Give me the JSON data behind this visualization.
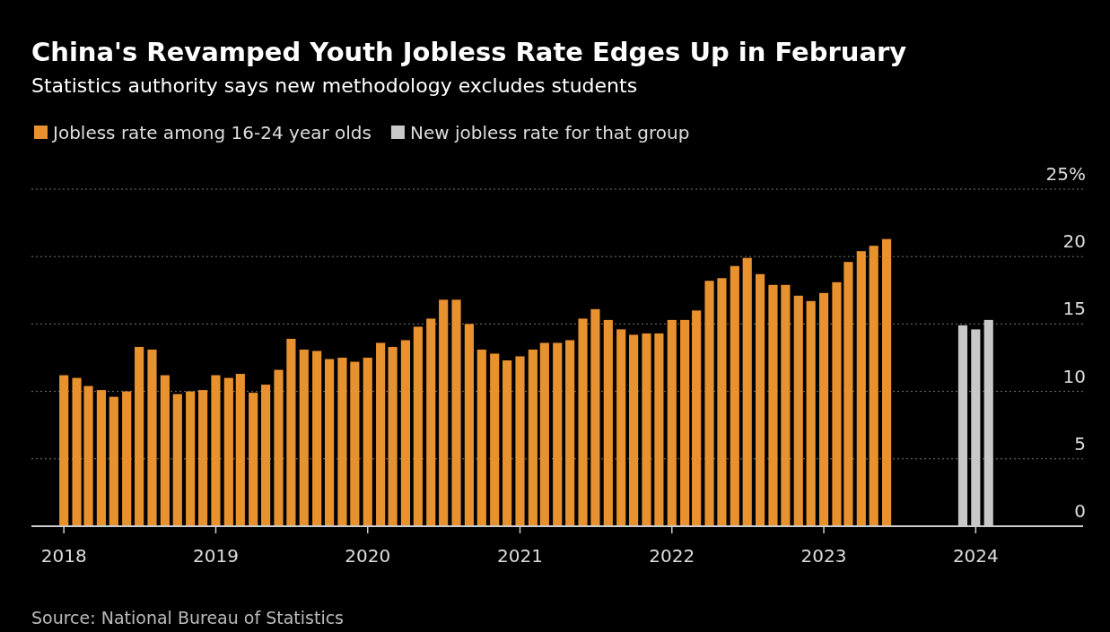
{
  "chart_data": {
    "type": "bar",
    "title": "China's Revamped Youth Jobless Rate Edges Up in February",
    "subtitle": "Statistics authority says new methodology excludes students",
    "series": [
      {
        "name": "Jobless rate among 16-24 year olds",
        "color": "#e8912f",
        "x": [
          "2018-01",
          "2018-02",
          "2018-03",
          "2018-04",
          "2018-05",
          "2018-06",
          "2018-07",
          "2018-08",
          "2018-09",
          "2018-10",
          "2018-11",
          "2018-12",
          "2019-01",
          "2019-02",
          "2019-03",
          "2019-04",
          "2019-05",
          "2019-06",
          "2019-07",
          "2019-08",
          "2019-09",
          "2019-10",
          "2019-11",
          "2019-12",
          "2020-01",
          "2020-02",
          "2020-03",
          "2020-04",
          "2020-05",
          "2020-06",
          "2020-07",
          "2020-08",
          "2020-09",
          "2020-10",
          "2020-11",
          "2020-12",
          "2021-01",
          "2021-02",
          "2021-03",
          "2021-04",
          "2021-05",
          "2021-06",
          "2021-07",
          "2021-08",
          "2021-09",
          "2021-10",
          "2021-11",
          "2021-12",
          "2022-01",
          "2022-02",
          "2022-03",
          "2022-04",
          "2022-05",
          "2022-06",
          "2022-07",
          "2022-08",
          "2022-09",
          "2022-10",
          "2022-11",
          "2022-12",
          "2023-01",
          "2023-02",
          "2023-03",
          "2023-04",
          "2023-05",
          "2023-06"
        ],
        "values": [
          11.2,
          11.0,
          10.4,
          10.1,
          9.6,
          10.0,
          13.3,
          13.1,
          11.2,
          9.8,
          10.0,
          10.1,
          11.2,
          11.0,
          11.3,
          9.9,
          10.5,
          11.6,
          13.9,
          13.1,
          13.0,
          12.4,
          12.5,
          12.2,
          12.5,
          13.6,
          13.3,
          13.8,
          14.8,
          15.4,
          16.8,
          16.8,
          15.0,
          13.1,
          12.8,
          12.3,
          12.6,
          13.1,
          13.6,
          13.6,
          13.8,
          15.4,
          16.1,
          15.3,
          14.6,
          14.2,
          14.3,
          14.3,
          15.3,
          15.3,
          16.0,
          18.2,
          18.4,
          19.3,
          19.9,
          18.7,
          17.9,
          17.9,
          17.1,
          16.7,
          17.3,
          18.1,
          19.6,
          20.4,
          20.8,
          21.3
        ]
      },
      {
        "name": "New jobless rate for that group",
        "color": "#c8c8c8",
        "x": [
          "2023-12",
          "2024-01",
          "2024-02"
        ],
        "values": [
          14.9,
          14.6,
          15.3
        ]
      }
    ],
    "xlim": [
      "2017-10-15",
      "2024-09-15"
    ],
    "xticks": [
      "2018",
      "2019",
      "2020",
      "2021",
      "2022",
      "2023",
      "2024"
    ],
    "ylim": [
      0,
      25
    ],
    "yticks": [
      0,
      5,
      10,
      15,
      20,
      {
        "value": 25,
        "label": "25%"
      }
    ],
    "grid": "y",
    "legend": "top left",
    "annotations": [
      "Source: National Bureau of Statistics"
    ]
  }
}
